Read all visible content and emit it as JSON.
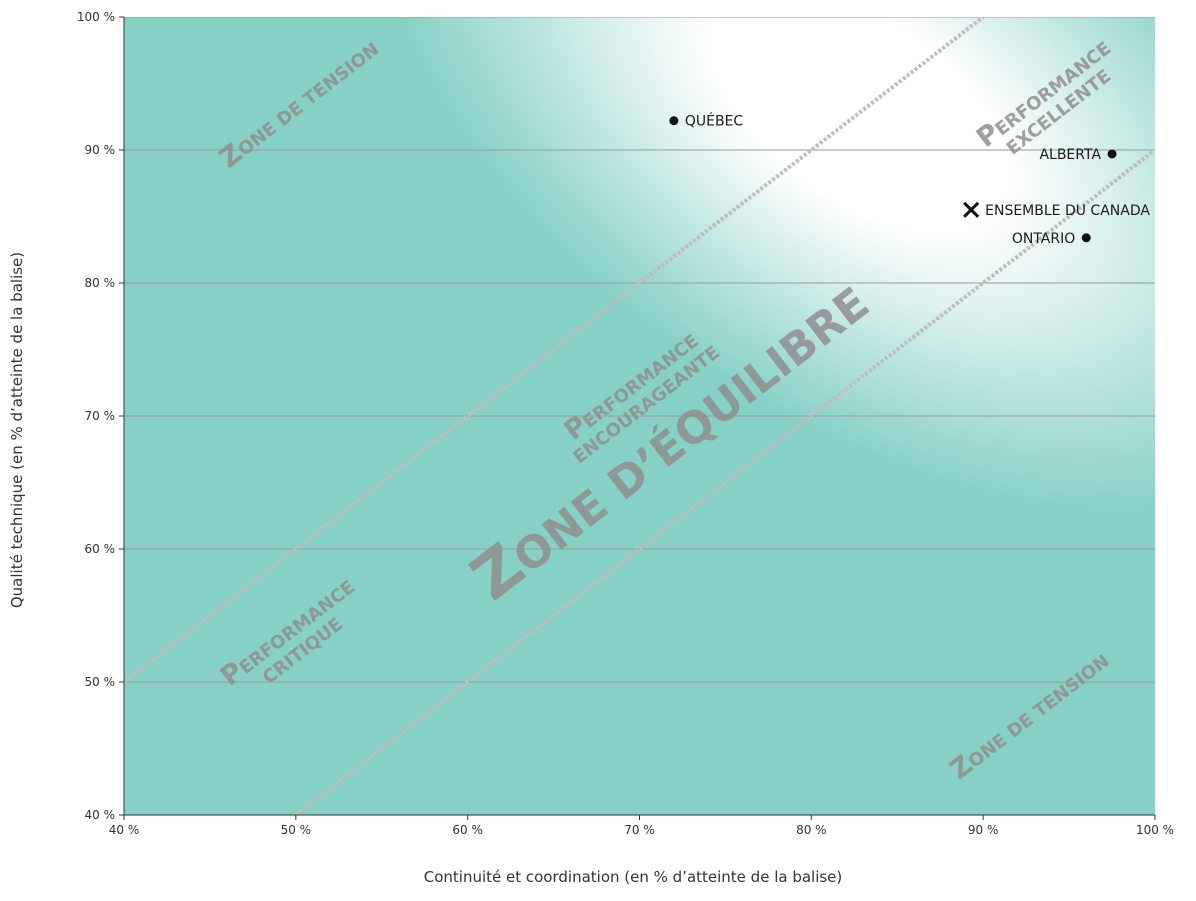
{
  "chart_data": {
    "type": "scatter",
    "xlabel": "Continuité et coordination (en % d’atteinte de la balise)",
    "ylabel": "Qualité technique (en % d’atteinte de la balise)",
    "xlim": [
      40,
      100
    ],
    "ylim": [
      40,
      100
    ],
    "x_ticks": [
      40,
      50,
      60,
      70,
      80,
      90,
      100
    ],
    "y_ticks": [
      40,
      50,
      60,
      70,
      80,
      90,
      100
    ],
    "x_tick_labels": [
      "40 %",
      "50 %",
      "60 %",
      "70 %",
      "80 %",
      "90 %",
      "100 %"
    ],
    "y_tick_labels": [
      "40 %",
      "50 %",
      "60 %",
      "70 %",
      "80 %",
      "90 %",
      "100 %"
    ],
    "grid": "horizontal",
    "points": [
      {
        "label": "QUÉBEC",
        "x": 72.0,
        "y": 92.2,
        "marker": "dot",
        "label_side": "right"
      },
      {
        "label": "ALBERTA",
        "x": 97.5,
        "y": 89.7,
        "marker": "dot",
        "label_side": "left"
      },
      {
        "label": "ENSEMBLE DU CANADA",
        "x": 89.3,
        "y": 85.5,
        "marker": "cross",
        "label_side": "right"
      },
      {
        "label": "ONTARIO",
        "x": 96.0,
        "y": 83.4,
        "marker": "dot",
        "label_side": "left"
      }
    ],
    "frontier_lines": [
      {
        "from": [
          40,
          50
        ],
        "to": [
          90,
          100
        ]
      },
      {
        "from": [
          50,
          40
        ],
        "to": [
          100,
          90
        ]
      }
    ],
    "zones": [
      {
        "name": "zone-tension-top",
        "text": "ZONE DE TENSION",
        "x": 50.5,
        "y": 93
      },
      {
        "name": "perf-excellente",
        "lines": [
          "PERFORMANCE",
          "EXCELLENTE"
        ],
        "x": 94,
        "y": 93.5
      },
      {
        "name": "perf-encourageante",
        "lines": [
          "PERFORMANCE",
          "ENCOURAGEANTE"
        ],
        "x": 70,
        "y": 71.5
      },
      {
        "name": "zone-equilibre",
        "text": "ZONE D’ÉQUILIBRE",
        "x": 72.5,
        "y": 67
      },
      {
        "name": "perf-critique",
        "lines": [
          "PERFORMANCE",
          "CRITIQUE"
        ],
        "x": 50,
        "y": 53
      },
      {
        "name": "zone-tension-bottom",
        "text": "ZONE DE TENSION",
        "x": 93,
        "y": 47
      }
    ],
    "colors": {
      "teal": "#86d0c6",
      "highlight": "#ffffff",
      "marker": "#111111",
      "zone_text": "#8e8e8e",
      "frontier": "#bdbdbd"
    }
  }
}
